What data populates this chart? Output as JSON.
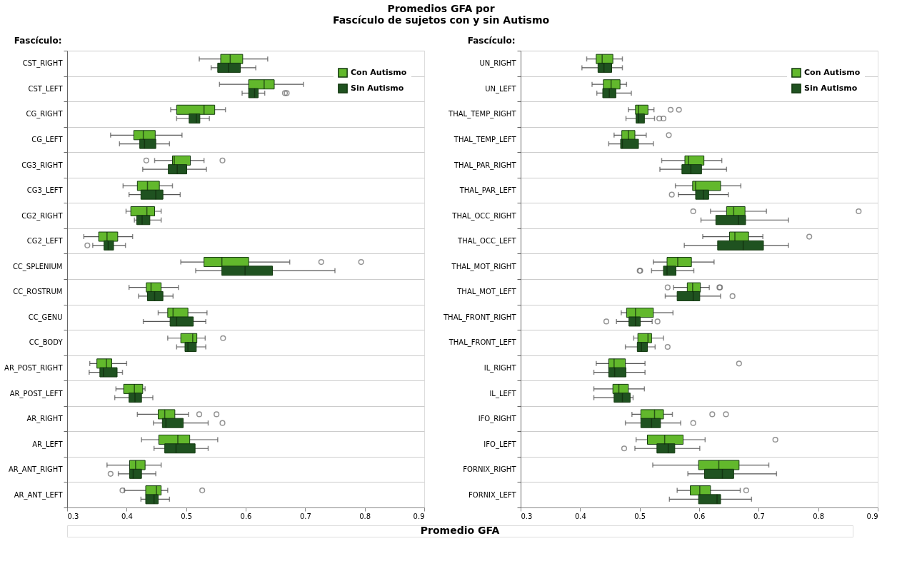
{
  "chart_data": [
    {
      "type": "box",
      "orientation": "horizontal",
      "title": "Promedios GFA por\nFascículo de sujetos con y sin Autismo",
      "xlabel": "Promedio GFA",
      "ylabel": "Fascículo:",
      "legend": "top right",
      "grid": "y",
      "xlim": [
        0.3,
        0.9
      ],
      "xticks": [
        0.3,
        0.4,
        0.5,
        0.6,
        0.7,
        0.8,
        0.9
      ],
      "categories": [
        "CST_RIGHT",
        "CST_LEFT",
        "CG_RIGHT",
        "CG_LEFT",
        "CG3_RIGHT",
        "CG3_LEFT",
        "CG2_RIGHT",
        "CG2_LEFT",
        "CC_SPLENIUM",
        "CC_ROSTRUM",
        "CC_GENU",
        "CC_BODY",
        "AR_POST_RIGHT",
        "AR_POST_LEFT",
        "AR_RIGHT",
        "AR_LEFT",
        "AR_ANT_RIGHT",
        "AR_ANT_LEFT"
      ],
      "series": [
        {
          "name": "Con Autismo",
          "color": "#62b82c",
          "boxes": [
            {
              "low": 0.522,
              "q1": 0.558,
              "median": 0.574,
              "q3": 0.595,
              "high": 0.637
            },
            {
              "low": 0.556,
              "q1": 0.605,
              "median": 0.631,
              "q3": 0.648,
              "high": 0.697
            },
            {
              "low": 0.474,
              "q1": 0.484,
              "median": 0.53,
              "q3": 0.548,
              "high": 0.566
            },
            {
              "low": 0.373,
              "q1": 0.412,
              "median": 0.428,
              "q3": 0.448,
              "high": 0.493
            },
            {
              "low": 0.447,
              "q1": 0.477,
              "median": 0.48,
              "q3": 0.507,
              "high": 0.53,
              "outliers": [
                0.433,
                0.561
              ]
            },
            {
              "low": 0.394,
              "q1": 0.418,
              "median": 0.435,
              "q3": 0.455,
              "high": 0.477
            },
            {
              "low": 0.399,
              "q1": 0.407,
              "median": 0.434,
              "q3": 0.447,
              "high": 0.458
            },
            {
              "low": 0.328,
              "q1": 0.353,
              "median": 0.367,
              "q3": 0.385,
              "high": 0.41
            },
            {
              "low": 0.491,
              "q1": 0.53,
              "median": 0.56,
              "q3": 0.605,
              "high": 0.674,
              "outliers": [
                0.727,
                0.794
              ]
            },
            {
              "low": 0.404,
              "q1": 0.433,
              "median": 0.441,
              "q3": 0.458,
              "high": 0.487
            },
            {
              "low": 0.453,
              "q1": 0.469,
              "median": 0.478,
              "q3": 0.503,
              "high": 0.535
            },
            {
              "low": 0.469,
              "q1": 0.491,
              "median": 0.511,
              "q3": 0.518,
              "high": 0.532,
              "outliers": [
                0.562
              ]
            },
            {
              "low": 0.338,
              "q1": 0.35,
              "median": 0.366,
              "q3": 0.375,
              "high": 0.4
            },
            {
              "low": 0.382,
              "q1": 0.395,
              "median": 0.413,
              "q3": 0.427,
              "high": 0.431
            },
            {
              "low": 0.418,
              "q1": 0.453,
              "median": 0.464,
              "q3": 0.481,
              "high": 0.504,
              "outliers": [
                0.522,
                0.551
              ]
            },
            {
              "low": 0.425,
              "q1": 0.454,
              "median": 0.486,
              "q3": 0.506,
              "high": 0.553
            },
            {
              "low": 0.367,
              "q1": 0.405,
              "median": 0.415,
              "q3": 0.431,
              "high": 0.458
            },
            {
              "low": 0.396,
              "q1": 0.432,
              "median": 0.45,
              "q3": 0.458,
              "high": 0.469,
              "outliers": [
                0.393,
                0.527
              ]
            }
          ]
        },
        {
          "name": "Sin Autismo",
          "color": "#1f5220",
          "boxes": [
            {
              "low": 0.542,
              "q1": 0.553,
              "median": 0.571,
              "q3": 0.591,
              "high": 0.617
            },
            {
              "low": 0.594,
              "q1": 0.605,
              "median": 0.615,
              "q3": 0.621,
              "high": 0.632,
              "outliers": [
                0.666,
                0.669
              ]
            },
            {
              "low": 0.484,
              "q1": 0.505,
              "median": 0.517,
              "q3": 0.523,
              "high": 0.539
            },
            {
              "low": 0.388,
              "q1": 0.422,
              "median": 0.43,
              "q3": 0.449,
              "high": 0.472
            },
            {
              "low": 0.427,
              "q1": 0.47,
              "median": 0.485,
              "q3": 0.501,
              "high": 0.534
            },
            {
              "low": 0.404,
              "q1": 0.424,
              "median": 0.449,
              "q3": 0.461,
              "high": 0.49
            },
            {
              "low": 0.413,
              "q1": 0.417,
              "median": 0.426,
              "q3": 0.439,
              "high": 0.458
            },
            {
              "low": 0.343,
              "q1": 0.362,
              "median": 0.369,
              "q3": 0.378,
              "high": 0.398,
              "outliers": [
                0.334
              ]
            },
            {
              "low": 0.516,
              "q1": 0.56,
              "median": 0.599,
              "q3": 0.645,
              "high": 0.75
            },
            {
              "low": 0.42,
              "q1": 0.435,
              "median": 0.447,
              "q3": 0.461,
              "high": 0.478
            },
            {
              "low": 0.428,
              "q1": 0.473,
              "median": 0.484,
              "q3": 0.512,
              "high": 0.533
            },
            {
              "low": 0.484,
              "q1": 0.498,
              "median": 0.503,
              "q3": 0.517,
              "high": 0.533
            },
            {
              "low": 0.337,
              "q1": 0.355,
              "median": 0.361,
              "q3": 0.384,
              "high": 0.393
            },
            {
              "low": 0.38,
              "q1": 0.404,
              "median": 0.414,
              "q3": 0.425,
              "high": 0.444
            },
            {
              "low": 0.445,
              "q1": 0.46,
              "median": 0.466,
              "q3": 0.495,
              "high": 0.537,
              "outliers": [
                0.561
              ]
            },
            {
              "low": 0.446,
              "q1": 0.464,
              "median": 0.483,
              "q3": 0.515,
              "high": 0.537
            },
            {
              "low": 0.386,
              "q1": 0.405,
              "median": 0.411,
              "q3": 0.425,
              "high": 0.449,
              "outliers": [
                0.373
              ]
            },
            {
              "low": 0.424,
              "q1": 0.432,
              "median": 0.446,
              "q3": 0.453,
              "high": 0.472
            }
          ]
        }
      ]
    },
    {
      "type": "box",
      "orientation": "horizontal",
      "ylabel": "Fascículo:",
      "legend": "top right",
      "grid": "y",
      "xlim": [
        0.3,
        0.9
      ],
      "xticks": [
        0.3,
        0.4,
        0.5,
        0.6,
        0.7,
        0.8,
        0.9
      ],
      "categories": [
        "UN_RIGHT",
        "UN_LEFT",
        "THAL_TEMP_RIGHT",
        "THAL_TEMP_LEFT",
        "THAL_PAR_RIGHT",
        "THAL_PAR_LEFT",
        "THAL_OCC_RIGHT",
        "THAL_OCC_LEFT",
        "THAL_MOT_RIGHT",
        "THAL_MOT_LEFT",
        "THAL_FRONT_RIGHT",
        "THAL_FRONT_LEFT",
        "IL_RIGHT",
        "IL_LEFT",
        "IFO_RIGHT",
        "IFO_LEFT",
        "FORNIX_RIGHT",
        "FORNIX_LEFT"
      ],
      "series": [
        {
          "name": "Con Autismo",
          "color": "#62b82c",
          "boxes": [
            {
              "low": 0.411,
              "q1": 0.427,
              "median": 0.437,
              "q3": 0.455,
              "high": 0.471
            },
            {
              "low": 0.42,
              "q1": 0.439,
              "median": 0.452,
              "q3": 0.467,
              "high": 0.478
            },
            {
              "low": 0.481,
              "q1": 0.493,
              "median": 0.498,
              "q3": 0.514,
              "high": 0.524,
              "outliers": [
                0.552,
                0.566
              ]
            },
            {
              "low": 0.457,
              "q1": 0.47,
              "median": 0.481,
              "q3": 0.492,
              "high": 0.511,
              "outliers": [
                0.549
              ]
            },
            {
              "low": 0.537,
              "q1": 0.576,
              "median": 0.582,
              "q3": 0.608,
              "high": 0.638
            },
            {
              "low": 0.56,
              "q1": 0.589,
              "median": 0.594,
              "q3": 0.636,
              "high": 0.67
            },
            {
              "low": 0.619,
              "q1": 0.646,
              "median": 0.658,
              "q3": 0.677,
              "high": 0.713,
              "outliers": [
                0.59,
                0.868
              ]
            },
            {
              "low": 0.606,
              "q1": 0.651,
              "median": 0.66,
              "q3": 0.683,
              "high": 0.707,
              "outliers": [
                0.785
              ]
            },
            {
              "low": 0.523,
              "q1": 0.546,
              "median": 0.564,
              "q3": 0.587,
              "high": 0.625
            },
            {
              "low": 0.557,
              "q1": 0.58,
              "median": 0.589,
              "q3": 0.602,
              "high": 0.617,
              "outliers": [
                0.547,
                0.634,
                0.635
              ]
            },
            {
              "low": 0.469,
              "q1": 0.478,
              "median": 0.493,
              "q3": 0.523,
              "high": 0.556
            },
            {
              "low": 0.49,
              "q1": 0.497,
              "median": 0.514,
              "q3": 0.52,
              "high": 0.54
            },
            {
              "low": 0.427,
              "q1": 0.448,
              "median": 0.457,
              "q3": 0.476,
              "high": 0.509,
              "outliers": [
                0.667
              ]
            },
            {
              "low": 0.423,
              "q1": 0.455,
              "median": 0.465,
              "q3": 0.481,
              "high": 0.508
            },
            {
              "low": 0.487,
              "q1": 0.502,
              "median": 0.525,
              "q3": 0.54,
              "high": 0.555,
              "outliers": [
                0.622,
                0.645
              ]
            },
            {
              "low": 0.494,
              "q1": 0.513,
              "median": 0.542,
              "q3": 0.573,
              "high": 0.61,
              "outliers": [
                0.728
              ]
            },
            {
              "low": 0.522,
              "q1": 0.599,
              "median": 0.633,
              "q3": 0.667,
              "high": 0.717
            },
            {
              "low": 0.563,
              "q1": 0.585,
              "median": 0.601,
              "q3": 0.619,
              "high": 0.669,
              "outliers": [
                0.679
              ]
            }
          ]
        },
        {
          "name": "Sin Autismo",
          "color": "#1f5220",
          "boxes": [
            {
              "low": 0.403,
              "q1": 0.43,
              "median": 0.44,
              "q3": 0.453,
              "high": 0.471
            },
            {
              "low": 0.428,
              "q1": 0.438,
              "median": 0.449,
              "q3": 0.46,
              "high": 0.486
            },
            {
              "low": 0.477,
              "q1": 0.494,
              "median": 0.498,
              "q3": 0.508,
              "high": 0.525,
              "outliers": [
                0.533,
                0.54
              ]
            },
            {
              "low": 0.448,
              "q1": 0.468,
              "median": 0.471,
              "q3": 0.498,
              "high": 0.523
            },
            {
              "low": 0.534,
              "q1": 0.571,
              "median": 0.586,
              "q3": 0.604,
              "high": 0.646
            },
            {
              "low": 0.565,
              "q1": 0.594,
              "median": 0.607,
              "q3": 0.616,
              "high": 0.649,
              "outliers": [
                0.554
              ]
            },
            {
              "low": 0.603,
              "q1": 0.628,
              "median": 0.666,
              "q3": 0.678,
              "high": 0.75
            },
            {
              "low": 0.575,
              "q1": 0.631,
              "median": 0.674,
              "q3": 0.708,
              "high": 0.75
            },
            {
              "low": 0.52,
              "q1": 0.54,
              "median": 0.546,
              "q3": 0.561,
              "high": 0.591,
              "outliers": [
                0.5,
                0.501
              ]
            },
            {
              "low": 0.543,
              "q1": 0.563,
              "median": 0.59,
              "q3": 0.601,
              "high": 0.636,
              "outliers": [
                0.656
              ]
            },
            {
              "low": 0.461,
              "q1": 0.482,
              "median": 0.493,
              "q3": 0.501,
              "high": 0.521,
              "outliers": [
                0.444,
                0.53
              ]
            },
            {
              "low": 0.476,
              "q1": 0.496,
              "median": 0.503,
              "q3": 0.513,
              "high": 0.526,
              "outliers": [
                0.547
              ]
            },
            {
              "low": 0.423,
              "q1": 0.448,
              "median": 0.458,
              "q3": 0.477,
              "high": 0.509
            },
            {
              "low": 0.423,
              "q1": 0.457,
              "median": 0.471,
              "q3": 0.484,
              "high": 0.489
            },
            {
              "low": 0.476,
              "q1": 0.502,
              "median": 0.52,
              "q3": 0.535,
              "high": 0.569,
              "outliers": [
                0.59
              ]
            },
            {
              "low": 0.492,
              "q1": 0.529,
              "median": 0.548,
              "q3": 0.559,
              "high": 0.601,
              "outliers": [
                0.474
              ]
            },
            {
              "low": 0.581,
              "q1": 0.609,
              "median": 0.639,
              "q3": 0.658,
              "high": 0.73
            },
            {
              "low": 0.55,
              "q1": 0.599,
              "median": 0.63,
              "q3": 0.636,
              "high": 0.688
            }
          ]
        }
      ]
    }
  ]
}
